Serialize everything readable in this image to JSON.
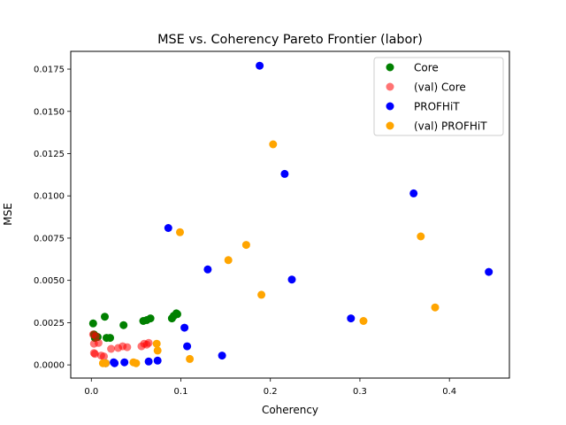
{
  "chart_data": {
    "type": "scatter",
    "title": "MSE vs. Coherency Pareto Frontier (labor)",
    "xlabel": "Coherency",
    "ylabel": "MSE",
    "xlim": [
      -0.023,
      0.467
    ],
    "ylim": [
      -0.00078,
      0.01855
    ],
    "xticks": [
      0.0,
      0.1,
      0.2,
      0.3,
      0.4
    ],
    "xtick_labels": [
      "0.0",
      "0.1",
      "0.2",
      "0.3",
      "0.4"
    ],
    "yticks": [
      0.0,
      0.0025,
      0.005,
      0.0075,
      0.01,
      0.0125,
      0.015,
      0.0175
    ],
    "ytick_labels": [
      "0.0000",
      "0.0025",
      "0.0050",
      "0.0075",
      "0.0100",
      "0.0125",
      "0.0150",
      "0.0175"
    ],
    "grid": false,
    "legend_position": "top-right",
    "series": [
      {
        "name": "Core",
        "color": "#008000",
        "opacity": 1,
        "points": [
          [
            0.002,
            0.00245
          ],
          [
            0.003,
            0.0018
          ],
          [
            0.004,
            0.0016
          ],
          [
            0.005,
            0.0017
          ],
          [
            0.007,
            0.00165
          ],
          [
            0.015,
            0.00285
          ],
          [
            0.017,
            0.0016
          ],
          [
            0.021,
            0.0016
          ],
          [
            0.036,
            0.00235
          ],
          [
            0.058,
            0.0026
          ],
          [
            0.062,
            0.00265
          ],
          [
            0.066,
            0.00275
          ],
          [
            0.09,
            0.00275
          ],
          [
            0.092,
            0.0029
          ],
          [
            0.095,
            0.00305
          ],
          [
            0.096,
            0.003
          ]
        ]
      },
      {
        "name": "(val) Core",
        "color": "#ff0000",
        "opacity": 0.55,
        "points": [
          [
            0.002,
            0.0018
          ],
          [
            0.003,
            0.00125
          ],
          [
            0.003,
            0.0007
          ],
          [
            0.004,
            0.00065
          ],
          [
            0.005,
            0.0017
          ],
          [
            0.008,
            0.0013
          ],
          [
            0.011,
            0.00055
          ],
          [
            0.014,
            0.0005
          ],
          [
            0.022,
            0.00095
          ],
          [
            0.03,
            0.001
          ],
          [
            0.035,
            0.0011
          ],
          [
            0.04,
            0.00105
          ],
          [
            0.056,
            0.0011
          ],
          [
            0.059,
            0.00125
          ],
          [
            0.062,
            0.0012
          ],
          [
            0.064,
            0.0013
          ]
        ]
      },
      {
        "name": "PROFHiT",
        "color": "#0000ff",
        "opacity": 1,
        "points": [
          [
            0.188,
            0.0177
          ],
          [
            0.216,
            0.0113
          ],
          [
            0.36,
            0.01015
          ],
          [
            0.086,
            0.0081
          ],
          [
            0.13,
            0.00565
          ],
          [
            0.444,
            0.0055
          ],
          [
            0.224,
            0.00505
          ],
          [
            0.29,
            0.00275
          ],
          [
            0.104,
            0.0022
          ],
          [
            0.107,
            0.0011
          ],
          [
            0.146,
            0.00055
          ],
          [
            0.016,
            0.0001
          ],
          [
            0.025,
            0.00015
          ],
          [
            0.026,
            0.0001
          ],
          [
            0.037,
            0.00015
          ],
          [
            0.064,
            0.0002
          ],
          [
            0.074,
            0.00025
          ]
        ]
      },
      {
        "name": "(val) PROFHiT",
        "color": "#ffa500",
        "opacity": 1,
        "points": [
          [
            0.203,
            0.01305
          ],
          [
            0.099,
            0.00785
          ],
          [
            0.368,
            0.0076
          ],
          [
            0.173,
            0.0071
          ],
          [
            0.153,
            0.0062
          ],
          [
            0.19,
            0.00415
          ],
          [
            0.384,
            0.0034
          ],
          [
            0.304,
            0.0026
          ],
          [
            0.073,
            0.00125
          ],
          [
            0.074,
            0.00085
          ],
          [
            0.11,
            0.00035
          ],
          [
            0.013,
            0.0001
          ],
          [
            0.016,
            0.0001
          ],
          [
            0.047,
            0.00015
          ],
          [
            0.05,
            0.0001
          ]
        ]
      }
    ]
  }
}
